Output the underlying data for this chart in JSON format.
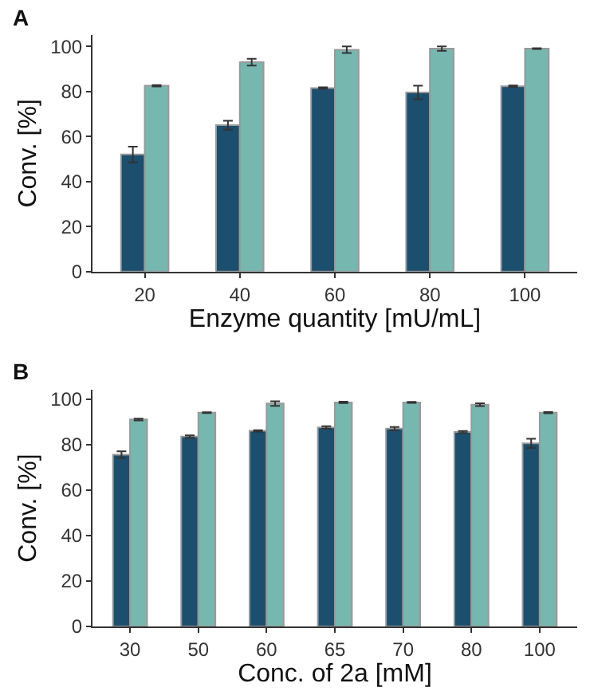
{
  "chart_data": [
    {
      "type": "bar",
      "title": "A",
      "xlabel": "Enzyme quantity [mU/mL]",
      "ylabel": "Conv. [%]",
      "categories": [
        "20",
        "40",
        "60",
        "80",
        "100"
      ],
      "ylim": [
        0,
        105
      ],
      "yticks": [
        0,
        20,
        40,
        60,
        80,
        100
      ],
      "series": [
        {
          "color": "#1c4e6e",
          "values": [
            52,
            65,
            81.5,
            79.5,
            82.3
          ],
          "errors": [
            3.5,
            2,
            0.3,
            3,
            0.3
          ]
        },
        {
          "color": "#76b7b0",
          "values": [
            82.5,
            93,
            98.5,
            99,
            99
          ],
          "errors": [
            0.3,
            1.5,
            1.5,
            1,
            0.2
          ]
        }
      ]
    },
    {
      "type": "bar",
      "title": "B",
      "xlabel": "Conc. of 2a [mM]",
      "ylabel": "Conv. [%]",
      "categories": [
        "30",
        "50",
        "60",
        "65",
        "70",
        "80",
        "100"
      ],
      "ylim": [
        0,
        104
      ],
      "yticks": [
        0,
        20,
        40,
        60,
        80,
        100
      ],
      "series": [
        {
          "color": "#1c4e6e",
          "values": [
            75.5,
            83.5,
            86,
            87.5,
            87,
            85.5,
            80.5
          ],
          "errors": [
            1.5,
            0.5,
            0.3,
            0.5,
            0.7,
            0.4,
            2
          ]
        },
        {
          "color": "#76b7b0",
          "values": [
            91,
            94,
            98,
            98.5,
            98.5,
            97.5,
            94
          ],
          "errors": [
            0.4,
            0.2,
            1,
            0.3,
            0.2,
            0.6,
            0.3
          ]
        }
      ]
    }
  ]
}
